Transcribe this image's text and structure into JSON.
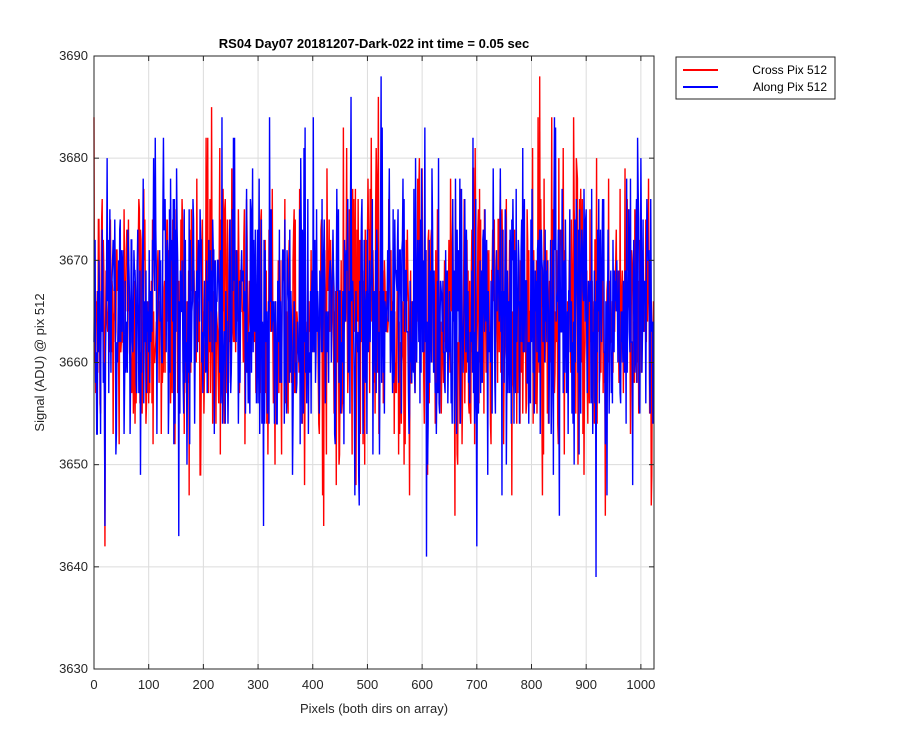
{
  "chart_data": {
    "type": "line",
    "title": "RS04 Day07 20181207-Dark-022 int time = 0.05 sec",
    "xlabel": "Pixels (both dirs on array)",
    "ylabel": "Signal (ADU) @ pix 512",
    "xlim": [
      0,
      1024
    ],
    "ylim": [
      3630,
      3690
    ],
    "x_ticks": [
      0,
      100,
      200,
      300,
      400,
      500,
      600,
      700,
      800,
      900,
      1000
    ],
    "y_ticks": [
      3630,
      3640,
      3650,
      3660,
      3670,
      3680,
      3690
    ],
    "grid": true,
    "legend_position": "outside-top-right",
    "series": [
      {
        "name": "Cross Pix 512",
        "color": "#ff0000",
        "mean": 3665,
        "noise_std": 7,
        "min": 3642,
        "max": 3688,
        "n_points": 1024,
        "notable_points": [
          {
            "x": 20,
            "y": 3642
          },
          {
            "x": 215,
            "y": 3685
          },
          {
            "x": 420,
            "y": 3644
          },
          {
            "x": 520,
            "y": 3686
          },
          {
            "x": 660,
            "y": 3645
          },
          {
            "x": 815,
            "y": 3688
          },
          {
            "x": 820,
            "y": 3647
          },
          {
            "x": 935,
            "y": 3645
          },
          {
            "x": 1020,
            "y": 3649
          }
        ]
      },
      {
        "name": "Along Pix 512",
        "color": "#0000ff",
        "mean": 3665,
        "noise_std": 7,
        "min": 3639,
        "max": 3688,
        "n_points": 1024,
        "notable_points": [
          {
            "x": 20,
            "y": 3644
          },
          {
            "x": 310,
            "y": 3644
          },
          {
            "x": 470,
            "y": 3686
          },
          {
            "x": 525,
            "y": 3688
          },
          {
            "x": 608,
            "y": 3641
          },
          {
            "x": 700,
            "y": 3642
          },
          {
            "x": 918,
            "y": 3639
          },
          {
            "x": 1000,
            "y": 3680
          }
        ]
      }
    ]
  }
}
